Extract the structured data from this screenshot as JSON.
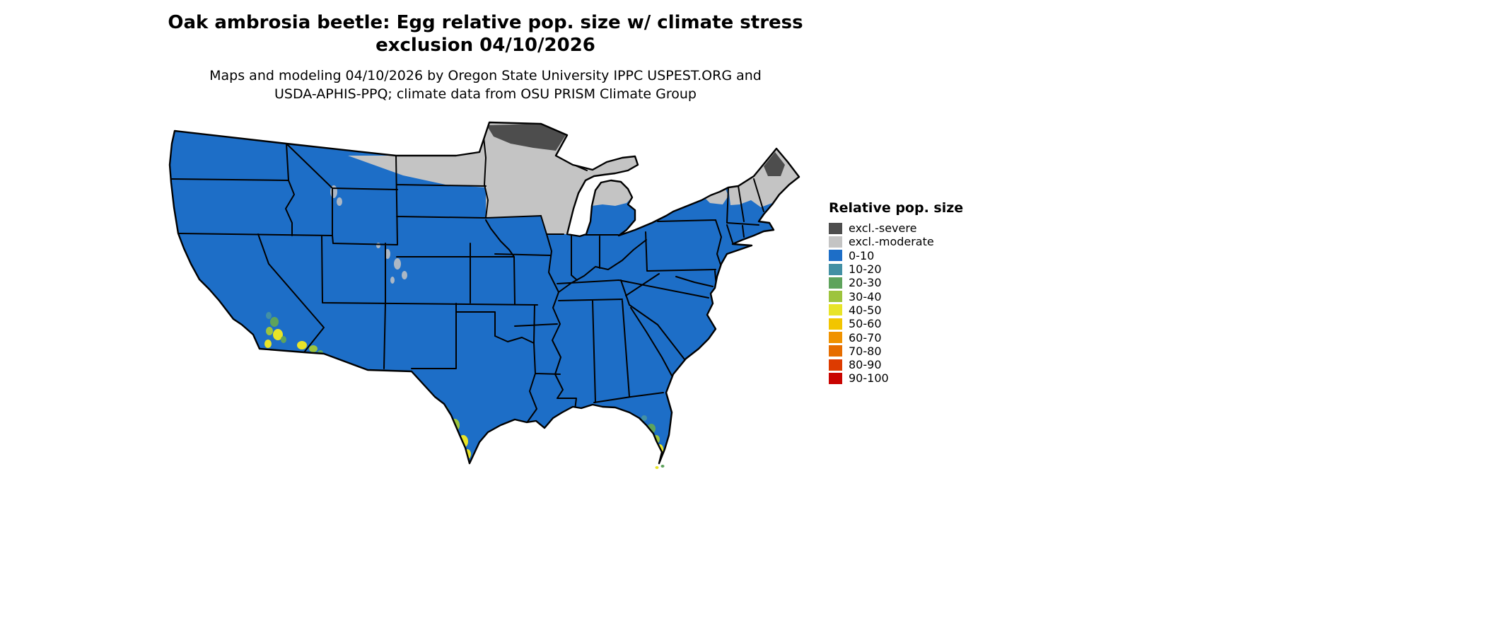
{
  "title": {
    "line1": "Oak ambrosia beetle: Egg relative pop. size w/ climate stress",
    "line2": "exclusion 04/10/2026"
  },
  "subtitle": {
    "line1": "Maps and modeling 04/10/2026 by Oregon State University IPPC USPEST.ORG and",
    "line2": "USDA-APHIS-PPQ; climate data from OSU PRISM Climate Group"
  },
  "legend": {
    "title": "Relative pop. size",
    "items": [
      {
        "label": "excl.-severe",
        "color": "#4d4d4d"
      },
      {
        "label": "excl.-moderate",
        "color": "#c4c4c4"
      },
      {
        "label": "0-10",
        "color": "#1d6ec7"
      },
      {
        "label": "10-20",
        "color": "#4390a4"
      },
      {
        "label": "20-30",
        "color": "#5ea35c"
      },
      {
        "label": "30-40",
        "color": "#9dc43d"
      },
      {
        "label": "40-50",
        "color": "#e8e428"
      },
      {
        "label": "50-60",
        "color": "#f2c500"
      },
      {
        "label": "60-70",
        "color": "#f09200"
      },
      {
        "label": "70-80",
        "color": "#e66d00"
      },
      {
        "label": "80-90",
        "color": "#dd3b00"
      },
      {
        "label": "90-100",
        "color": "#c90400"
      }
    ]
  },
  "map": {
    "description": "Continental United States choropleth of relative population size with climate stress exclusion",
    "border_color": "#000000",
    "background": "#ffffff",
    "base_category": "0-10",
    "region_summary": [
      {
        "area": "Most of the continental US",
        "category": "0-10"
      },
      {
        "area": "Eastern North Dakota, Minnesota, Wisconsin, Michigan, Adirondacks, northern New England",
        "category": "excl.-moderate"
      },
      {
        "area": "Northern Minnesota and north-central Maine",
        "category": "excl.-severe"
      },
      {
        "area": "Rocky Mountain high elevations (scattered)",
        "category": "excl.-moderate"
      },
      {
        "area": "Southern California, southern Arizona, southern Texas, southern Florida",
        "category": "10-50 patches"
      }
    ]
  }
}
